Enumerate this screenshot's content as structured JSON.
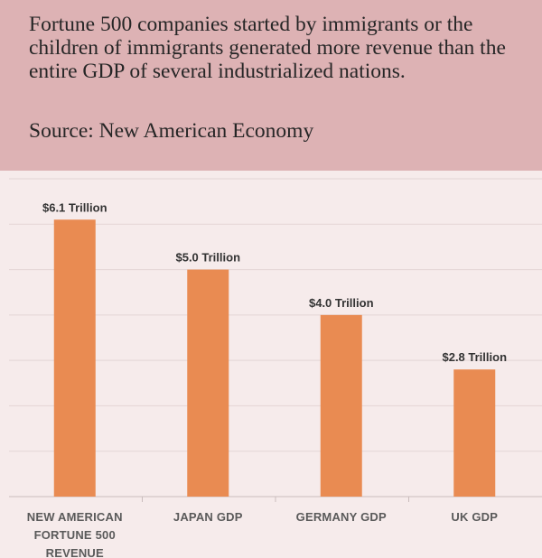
{
  "header": {
    "description": "Fortune 500 companies started by immigrants or the children of immigrants generated more revenue than the entire GDP of several industrialized nations.",
    "source": "Source: New American Economy"
  },
  "chart_data": {
    "type": "bar",
    "categories": [
      "NEW AMERICAN FORTUNE 500 REVENUE",
      "JAPAN GDP",
      "GERMANY GDP",
      "UK GDP"
    ],
    "values": [
      6.1,
      5.0,
      4.0,
      2.8
    ],
    "data_labels": [
      "$6.1 Trillion",
      "$5.0 Trillion",
      "$4.0 Trillion",
      "$2.8 Trillion"
    ],
    "ylim": [
      0,
      7
    ],
    "grid": true,
    "colors": {
      "bar": "#e98b52",
      "grid": "#e3d5d5",
      "axis": "#c9bcbc"
    }
  }
}
